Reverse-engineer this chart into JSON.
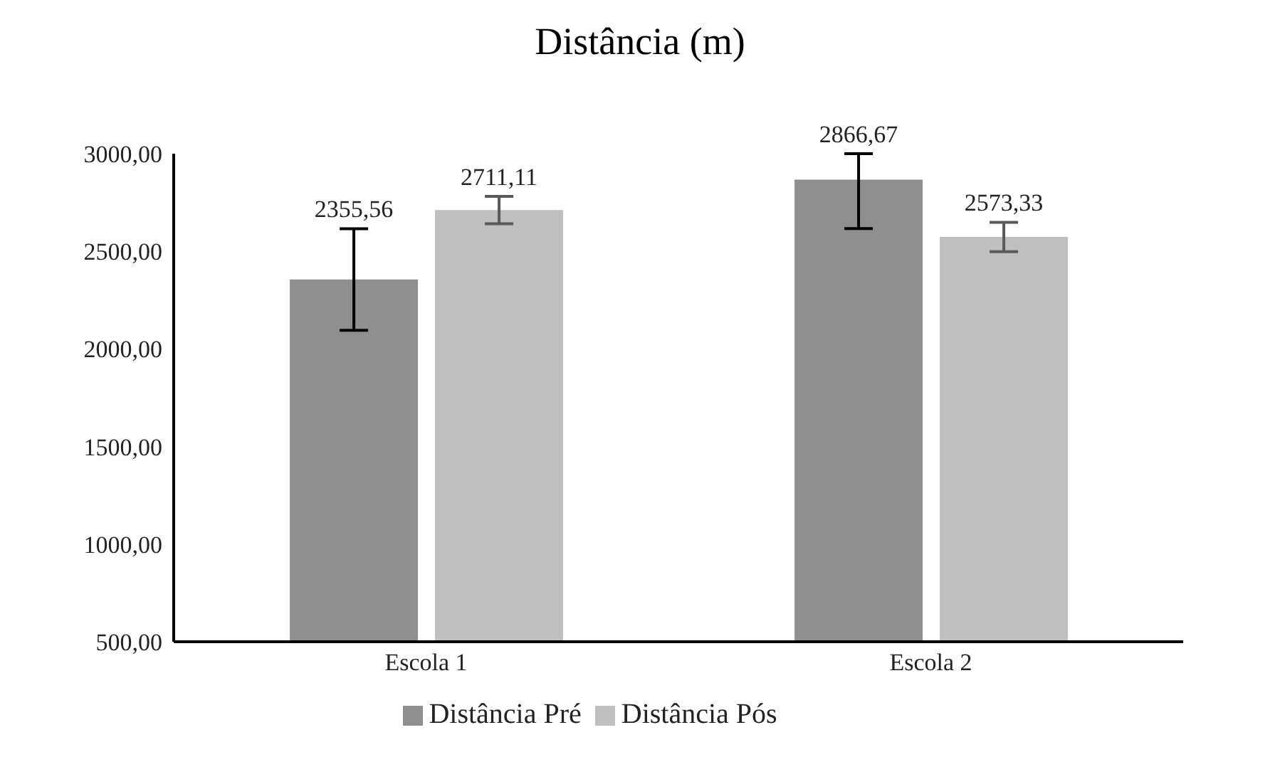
{
  "chart_data": {
    "type": "bar",
    "title": "Distância (m)",
    "categories": [
      "Escola 1",
      "Escola 2"
    ],
    "series": [
      {
        "name": "Distância Pré",
        "color": "#8f8f8f",
        "values": [
          2355.56,
          2866.67
        ],
        "errors": [
          [
            2095.56,
            2615.56
          ],
          [
            2616.67,
            3000
          ]
        ],
        "value_labels": [
          "2355,56",
          "2866,67"
        ]
      },
      {
        "name": "Distância Pós",
        "color": "#bfbfbf",
        "values": [
          2711.11,
          2573.33
        ],
        "errors": [
          [
            2641.11,
            2781.11
          ],
          [
            2498.33,
            2648.33
          ]
        ],
        "value_labels": [
          "2711,11",
          "2573,33"
        ]
      }
    ],
    "ylim": [
      500,
      3000
    ],
    "yticks": [
      {
        "value": 500,
        "label": "500,00"
      },
      {
        "value": 1000,
        "label": "1000,00"
      },
      {
        "value": 1500,
        "label": "1500,00"
      },
      {
        "value": 2000,
        "label": "2000,00"
      },
      {
        "value": 2500,
        "label": "2500,00"
      },
      {
        "value": 3000,
        "label": "3000,00"
      }
    ],
    "grid": false,
    "legend": "bottom"
  }
}
